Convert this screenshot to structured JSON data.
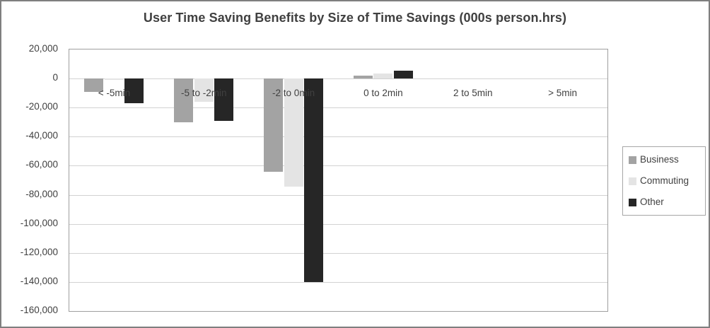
{
  "chart_data": {
    "type": "bar",
    "title": "User Time Saving Benefits by Size of Time Savings (000s person.hrs)",
    "categories": [
      "< -5min",
      "-5 to -2min",
      "-2 to 0min",
      "0 to 2min",
      "2 to 5min",
      "> 5min"
    ],
    "series": [
      {
        "name": "Business",
        "color": "#a3a3a3",
        "values": [
          -9000,
          -30000,
          -64000,
          2000,
          0,
          0
        ]
      },
      {
        "name": "Commuting",
        "color": "#e4e4e4",
        "values": [
          -1000,
          -16000,
          -74500,
          3500,
          0,
          0
        ]
      },
      {
        "name": "Other",
        "color": "#262626",
        "values": [
          -17000,
          -29000,
          -140000,
          5500,
          0,
          0
        ]
      }
    ],
    "y_axis": {
      "min": -160000,
      "max": 20000,
      "step": 20000,
      "tick_labels": [
        "20,000",
        "0",
        "-20,000",
        "-40,000",
        "-60,000",
        "-80,000",
        "-100,000",
        "-120,000",
        "-140,000",
        "-160,000"
      ]
    },
    "xlabel": "",
    "ylabel": "",
    "grid": true,
    "legend_position": "right",
    "colors": {
      "text": "#404040",
      "gridline": "#d2d2d2",
      "axis_border": "#9e9e9e",
      "legend_border": "#a6a6a6",
      "frame_border": "#7f7f7f",
      "background": "#ffffff"
    }
  }
}
